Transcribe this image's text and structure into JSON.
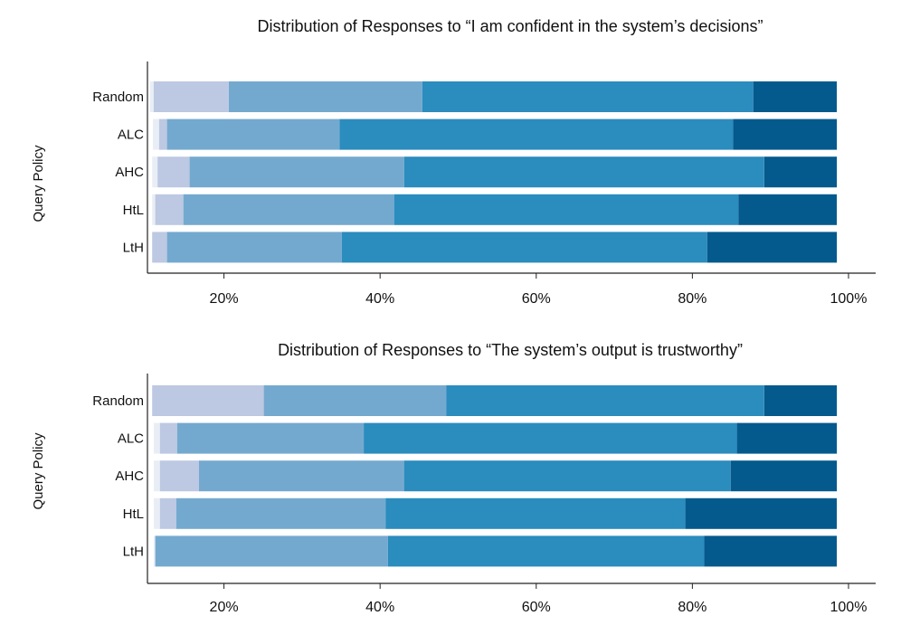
{
  "chart_data": [
    {
      "type": "bar",
      "orientation": "horizontal",
      "stacked": true,
      "title": "Distribution of Responses to “I am confident in the system’s decisions”",
      "ylabel": "Query Policy",
      "categories": [
        "Random",
        "ALC",
        "AHC",
        "HtL",
        "LtH"
      ],
      "x_ticks": [
        "20%",
        "40%",
        "60%",
        "80%",
        "100%"
      ],
      "xlim": [
        0.102,
        1.05
      ],
      "grid": false,
      "series_colors": [
        "#e9eef6",
        "#bdc8e2",
        "#74a9cf",
        "#2b8cbe",
        "#045a8d"
      ],
      "segments": [
        [
          [
            0.105,
            0.11
          ],
          [
            0.11,
            0.206
          ],
          [
            0.206,
            0.454
          ],
          [
            0.454,
            0.878
          ],
          [
            0.878,
            0.985
          ]
        ],
        [
          [
            0.109,
            0.117
          ],
          [
            0.117,
            0.127
          ],
          [
            0.127,
            0.348
          ],
          [
            0.348,
            0.852
          ],
          [
            0.852,
            0.985
          ]
        ],
        [
          [
            0.108,
            0.115
          ],
          [
            0.115,
            0.156
          ],
          [
            0.156,
            0.431
          ],
          [
            0.431,
            0.892
          ],
          [
            0.892,
            0.985
          ]
        ],
        [
          [
            0.108,
            0.112
          ],
          [
            0.112,
            0.148
          ],
          [
            0.148,
            0.418
          ],
          [
            0.418,
            0.859
          ],
          [
            0.859,
            0.985
          ]
        ],
        [
          [
            0.108,
            0.108
          ],
          [
            0.108,
            0.127
          ],
          [
            0.127,
            0.351
          ],
          [
            0.351,
            0.819
          ],
          [
            0.819,
            0.985
          ]
        ]
      ]
    },
    {
      "type": "bar",
      "orientation": "horizontal",
      "stacked": true,
      "title": "Distribution of Responses to “The system’s output is trustworthy”",
      "ylabel": "Query Policy",
      "categories": [
        "Random",
        "ALC",
        "AHC",
        "HtL",
        "LtH"
      ],
      "x_ticks": [
        "20%",
        "40%",
        "60%",
        "80%",
        "100%"
      ],
      "xlim": [
        0.102,
        1.05
      ],
      "grid": false,
      "series_colors": [
        "#e9eef6",
        "#bdc8e2",
        "#74a9cf",
        "#2b8cbe",
        "#045a8d"
      ],
      "segments": [
        [
          [
            0.108,
            0.108
          ],
          [
            0.108,
            0.251
          ],
          [
            0.251,
            0.485
          ],
          [
            0.485,
            0.892
          ],
          [
            0.892,
            0.985
          ]
        ],
        [
          [
            0.11,
            0.118
          ],
          [
            0.118,
            0.14
          ],
          [
            0.14,
            0.379
          ],
          [
            0.379,
            0.857
          ],
          [
            0.857,
            0.985
          ]
        ],
        [
          [
            0.11,
            0.118
          ],
          [
            0.118,
            0.168
          ],
          [
            0.168,
            0.431
          ],
          [
            0.431,
            0.849
          ],
          [
            0.849,
            0.985
          ]
        ],
        [
          [
            0.11,
            0.118
          ],
          [
            0.118,
            0.139
          ],
          [
            0.139,
            0.407
          ],
          [
            0.407,
            0.791
          ],
          [
            0.791,
            0.985
          ]
        ],
        [
          [
            0.11,
            0.112
          ],
          [
            0.112,
            0.112
          ],
          [
            0.112,
            0.41
          ],
          [
            0.41,
            0.815
          ],
          [
            0.815,
            0.985
          ]
        ]
      ]
    }
  ]
}
